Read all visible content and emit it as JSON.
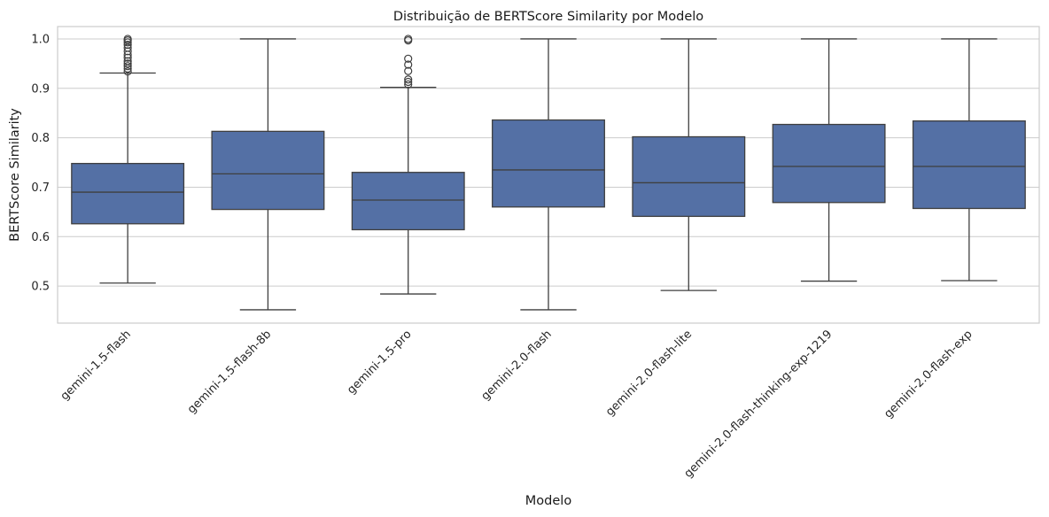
{
  "chart_data": {
    "type": "box",
    "title": "Distribuição de BERTScore Similarity por Modelo",
    "xlabel": "Modelo",
    "ylabel": "BERTScore Similarity",
    "ylim": [
      0.425,
      1.025
    ],
    "yticks": [
      0.5,
      0.6,
      0.7,
      0.8,
      0.9,
      1.0
    ],
    "ytick_labels": [
      "0.5",
      "0.6",
      "0.7",
      "0.8",
      "0.9",
      "1.0"
    ],
    "grid": "horizontal",
    "box_color": "#5470a5",
    "line_color": "#3f3f3f",
    "categories": [
      "gemini-1.5-flash",
      "gemini-1.5-flash-8b",
      "gemini-1.5-pro",
      "gemini-2.0-flash",
      "gemini-2.0-flash-lite",
      "gemini-2.0-flash-thinking-exp-1219",
      "gemini-2.0-flash-exp"
    ],
    "boxes": [
      {
        "whislo": 0.506,
        "q1": 0.626,
        "med": 0.69,
        "q3": 0.748,
        "whishi": 0.931,
        "fliers": [
          0.934,
          0.94,
          0.945,
          0.95,
          0.955,
          0.962,
          0.968,
          0.975,
          0.982,
          0.988,
          0.993,
          0.997,
          1.0
        ]
      },
      {
        "whislo": 0.452,
        "q1": 0.655,
        "med": 0.727,
        "q3": 0.813,
        "whishi": 1.0,
        "fliers": []
      },
      {
        "whislo": 0.484,
        "q1": 0.614,
        "med": 0.674,
        "q3": 0.73,
        "whishi": 0.902,
        "fliers": [
          0.908,
          0.913,
          0.918,
          0.935,
          0.948,
          0.96,
          0.997,
          1.0
        ]
      },
      {
        "whislo": 0.452,
        "q1": 0.66,
        "med": 0.735,
        "q3": 0.836,
        "whishi": 1.0,
        "fliers": []
      },
      {
        "whislo": 0.491,
        "q1": 0.641,
        "med": 0.709,
        "q3": 0.802,
        "whishi": 1.0,
        "fliers": []
      },
      {
        "whislo": 0.51,
        "q1": 0.669,
        "med": 0.742,
        "q3": 0.827,
        "whishi": 1.0,
        "fliers": []
      },
      {
        "whislo": 0.511,
        "q1": 0.657,
        "med": 0.742,
        "q3": 0.834,
        "whishi": 1.0,
        "fliers": []
      }
    ]
  }
}
